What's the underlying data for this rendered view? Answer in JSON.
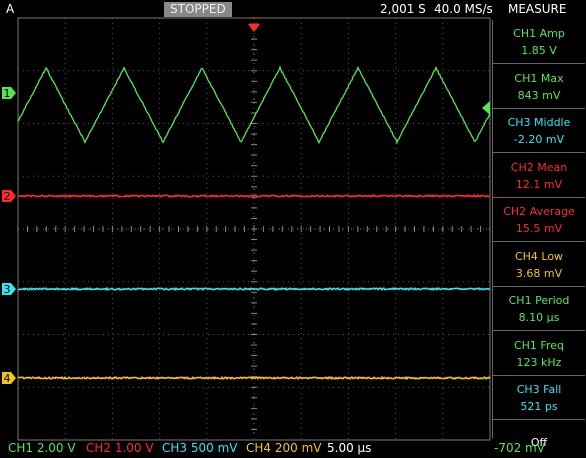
{
  "top_bar": {
    "mode": "A",
    "status": "STOPPED",
    "record": "2,001 S",
    "sample_rate": "40.0 MS/s",
    "menu": "MEASURE"
  },
  "channels": [
    {
      "marker": "1"
    },
    {
      "marker": "2"
    },
    {
      "marker": "3"
    },
    {
      "marker": "4"
    }
  ],
  "measurements": [
    {
      "label": "CH1 Amp",
      "value": "1.85 V"
    },
    {
      "label": "CH1 Max",
      "value": "843 mV"
    },
    {
      "label": "CH3 Middle",
      "value": "-2.20 mV"
    },
    {
      "label": "CH2 Mean",
      "value": "12.1 mV"
    },
    {
      "label": "CH2 Average",
      "value": "15.5 mV"
    },
    {
      "label": "CH4 Low",
      "value": "3.68 mV"
    },
    {
      "label": "CH1 Period",
      "value": "8.10 µs"
    },
    {
      "label": "CH1 Freq",
      "value": "123 kHz"
    },
    {
      "label": "CH3 Fall",
      "value": "521 ps"
    }
  ],
  "off": "Off",
  "bottom_bar": {
    "scales": [
      "CH1 2.00 V",
      "CH2 1.00 V",
      "CH3 500 mV",
      "CH4 200 mV"
    ],
    "timebase": "5.00 µs",
    "trigger_level": "-702 mV"
  }
}
